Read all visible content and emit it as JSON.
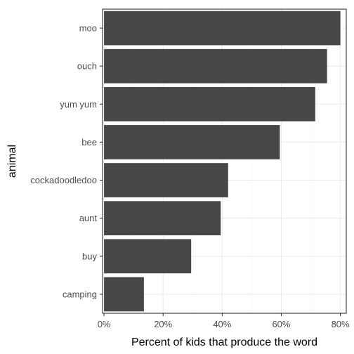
{
  "chart_data": {
    "type": "bar",
    "orientation": "horizontal",
    "categories": [
      "moo",
      "ouch",
      "yum yum",
      "bee",
      "cockadoodledoo",
      "aunt",
      "buy",
      "camping"
    ],
    "values": [
      80,
      75.5,
      71.5,
      59.5,
      42,
      39.5,
      29.5,
      13.5
    ],
    "xlabel": "Percent of kids that produce the word",
    "ylabel": "animal",
    "xlim": [
      -0.5,
      82
    ],
    "xticks": [
      0,
      20,
      40,
      60,
      80
    ],
    "xtick_labels": [
      "0%",
      "20%",
      "40%",
      "60%",
      "80%"
    ],
    "grid": true,
    "panel_border": true,
    "colors": {
      "bar": "#474747",
      "grid_major": "#ebebeb",
      "grid_minor": "#f5f5f5",
      "border": "#333333",
      "text": "#4d4d4d"
    }
  }
}
